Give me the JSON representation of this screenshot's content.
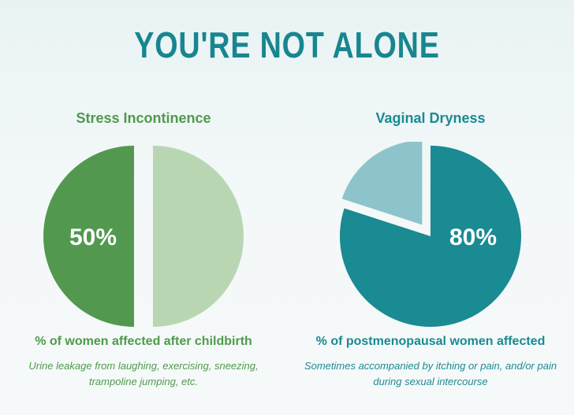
{
  "title": "YOU'RE NOT ALONE",
  "colors": {
    "title": "#17868f",
    "green_dark": "#52994f",
    "green_light": "#b9d6b3",
    "teal_dark": "#1a8a93",
    "teal_light": "#8dc4cc",
    "green_text": "#4e9a4c",
    "teal_text": "#1a8a93"
  },
  "chart_data": [
    {
      "type": "pie",
      "title": "Stress Incontinence",
      "slices": [
        {
          "label": "50%",
          "value": 50
        },
        {
          "label": "",
          "value": 50
        }
      ],
      "caption": "% of women affected after childbirth",
      "description": "Urine leakage from laughing, exercising, sneezing, trampoline jumping, etc."
    },
    {
      "type": "pie",
      "title": "Vaginal Dryness",
      "slices": [
        {
          "label": "80%",
          "value": 80
        },
        {
          "label": "",
          "value": 20
        }
      ],
      "caption": "% of postmenopausal women affected",
      "description": "Sometimes accompanied by itching or pain, and/or pain during sexual intercourse"
    }
  ]
}
